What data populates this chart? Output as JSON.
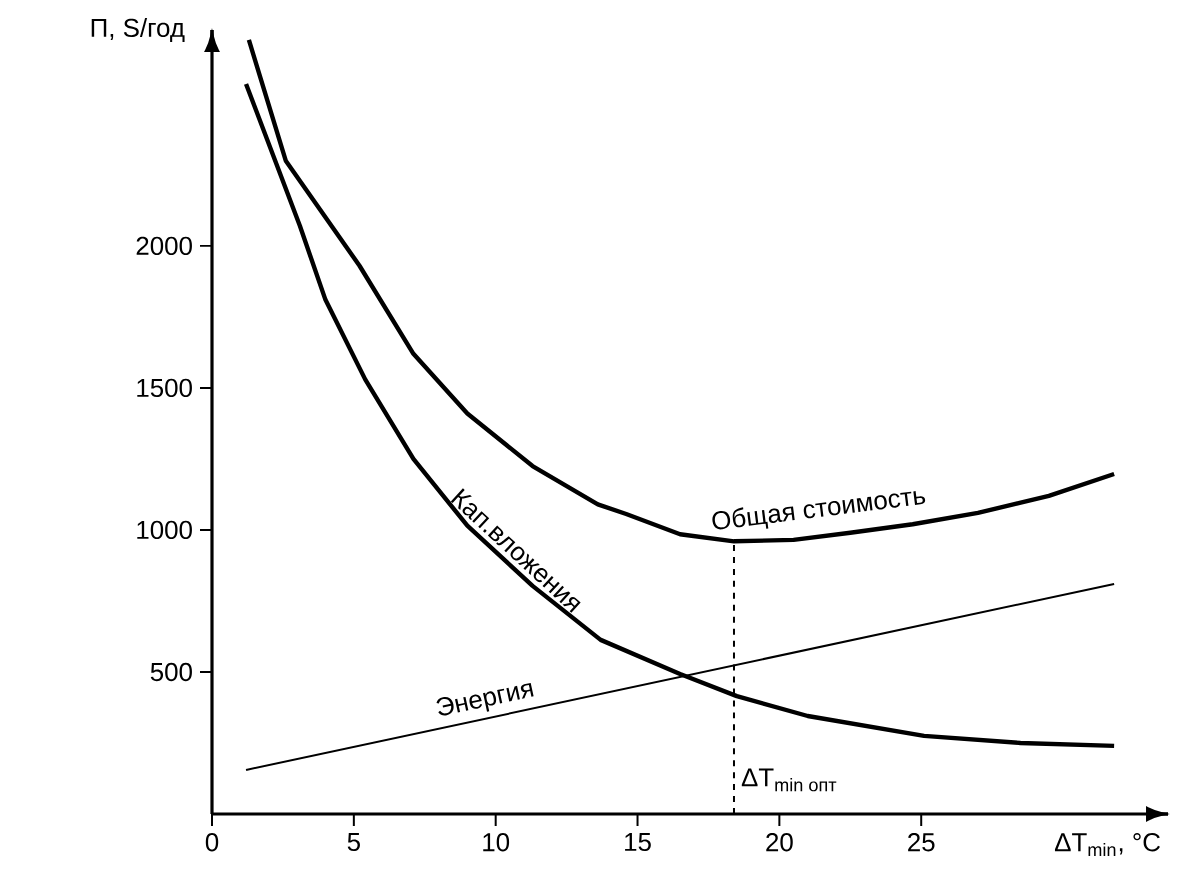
{
  "chart_data": {
    "type": "line",
    "xlabel": "ΔT$_{min}$, °C",
    "ylabel": "П, S/год",
    "xlim": [
      0,
      33.7
    ],
    "ylim": [
      0,
      2760
    ],
    "xticks": [
      0,
      5,
      10,
      15,
      20,
      25
    ],
    "yticks": [
      500,
      1000,
      1500,
      2000
    ],
    "grid": false,
    "legend": false,
    "marker": "none",
    "line_style": "solid",
    "series": [
      {
        "name": "Общая стоимость",
        "color": "#000000",
        "x": [
          1.3,
          2.6,
          5.2,
          7.1,
          9.0,
          11.3,
          13.6,
          14.6,
          16.5,
          18.4,
          20.5,
          22.5,
          24.7,
          27.0,
          29.5,
          31.8
        ],
        "values": [
          2725,
          2300,
          1930,
          1620,
          1410,
          1225,
          1090,
          1056,
          985,
          960,
          965,
          990,
          1020,
          1060,
          1120,
          1197
        ]
      },
      {
        "name": "Кап.вложения",
        "color": "#000000",
        "x": [
          1.2,
          3.1,
          4.0,
          5.4,
          7.1,
          9.0,
          11.3,
          13.7,
          16.5,
          18.5,
          21.0,
          25.1,
          28.5,
          31.8
        ],
        "values": [
          2570,
          2070,
          1810,
          1530,
          1250,
          1015,
          803,
          613,
          493,
          415,
          345,
          275,
          250,
          240
        ]
      },
      {
        "name": "Энергия",
        "color": "#000000",
        "x": [
          1.2,
          31.8
        ],
        "values": [
          155,
          810
        ]
      },
      {
        "color": "#000000",
        "line_style": "dashed",
        "x": [
          18.4,
          18.4
        ],
        "values": [
          0,
          960
        ]
      }
    ],
    "annotations": [
      {
        "text": "\\text{ΔT}_{\\text{min опт}}",
        "x": 18.4,
        "y": 120
      }
    ]
  }
}
